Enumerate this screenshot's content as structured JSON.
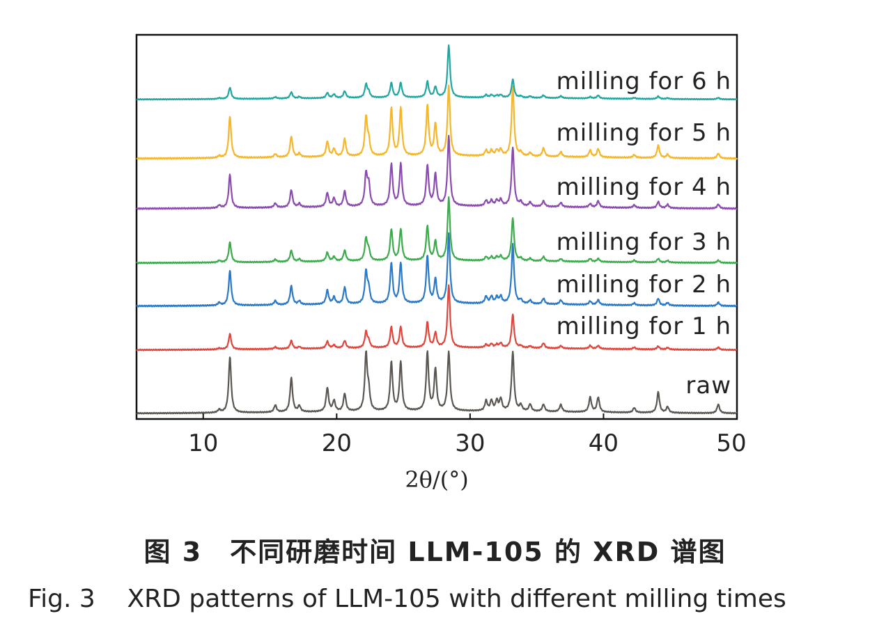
{
  "figure": {
    "caption_cn": "图 3　不同研磨时间 LLM-105 的 XRD 谱图",
    "caption_en": "Fig. 3    XRD patterns of LLM-105 with different milling times"
  },
  "chart_data": {
    "type": "line",
    "xlabel": "2θ/(°)",
    "ylabel": "",
    "xlim": [
      5,
      50
    ],
    "xticks": [
      10,
      20,
      30,
      40,
      50
    ],
    "grid": false,
    "legend": "inline labels at right end of each trace",
    "peaks_2theta": [
      11.2,
      12.0,
      15.4,
      16.6,
      17.2,
      19.3,
      19.8,
      20.6,
      22.2,
      22.4,
      24.1,
      24.8,
      26.8,
      27.4,
      28.4,
      31.2,
      31.6,
      32.0,
      32.3,
      33.2,
      33.8,
      34.5,
      35.5,
      36.8,
      39.0,
      39.6,
      42.3,
      44.1,
      44.8,
      48.6
    ],
    "series": [
      {
        "name": "raw",
        "color": "#5a5652",
        "intensities": [
          0.05,
          0.95,
          0.12,
          0.58,
          0.1,
          0.4,
          0.18,
          0.3,
          0.95,
          0.3,
          0.82,
          0.82,
          0.98,
          0.7,
          1.0,
          0.17,
          0.17,
          0.17,
          0.2,
          1.0,
          0.1,
          0.12,
          0.12,
          0.12,
          0.25,
          0.25,
          0.08,
          0.35,
          0.1,
          0.15
        ]
      },
      {
        "name": "milling for 1 h",
        "color": "#e0443a",
        "intensities": [
          0.02,
          0.25,
          0.03,
          0.13,
          0.03,
          0.11,
          0.05,
          0.12,
          0.25,
          0.1,
          0.33,
          0.33,
          0.4,
          0.23,
          1.0,
          0.05,
          0.06,
          0.05,
          0.07,
          0.53,
          0.03,
          0.03,
          0.08,
          0.04,
          0.05,
          0.05,
          0.03,
          0.05,
          0.03,
          0.04
        ]
      },
      {
        "name": "milling for 2 h",
        "color": "#2a78c8",
        "intensities": [
          0.04,
          0.5,
          0.06,
          0.27,
          0.05,
          0.2,
          0.1,
          0.24,
          0.45,
          0.2,
          0.58,
          0.58,
          0.68,
          0.34,
          1.0,
          0.1,
          0.1,
          0.09,
          0.1,
          0.85,
          0.05,
          0.05,
          0.08,
          0.06,
          0.05,
          0.07,
          0.03,
          0.1,
          0.04,
          0.05
        ]
      },
      {
        "name": "milling for 3 h",
        "color": "#3aab4a",
        "intensities": [
          0.03,
          0.32,
          0.04,
          0.18,
          0.04,
          0.14,
          0.07,
          0.17,
          0.35,
          0.16,
          0.5,
          0.5,
          0.55,
          0.3,
          1.0,
          0.06,
          0.06,
          0.06,
          0.07,
          0.68,
          0.04,
          0.04,
          0.07,
          0.04,
          0.05,
          0.05,
          0.03,
          0.06,
          0.03,
          0.04
        ]
      },
      {
        "name": "milling for 4 h",
        "color": "#8a4ab0",
        "intensities": [
          0.04,
          0.48,
          0.06,
          0.25,
          0.05,
          0.2,
          0.12,
          0.22,
          0.45,
          0.3,
          0.6,
          0.6,
          0.58,
          0.45,
          1.0,
          0.08,
          0.08,
          0.08,
          0.09,
          0.85,
          0.06,
          0.06,
          0.08,
          0.06,
          0.05,
          0.09,
          0.04,
          0.09,
          0.05,
          0.06
        ]
      },
      {
        "name": "milling for 5 h",
        "color": "#f6b62a",
        "intensities": [
          0.03,
          0.6,
          0.05,
          0.3,
          0.05,
          0.22,
          0.11,
          0.25,
          0.55,
          0.2,
          0.68,
          0.68,
          0.72,
          0.45,
          1.0,
          0.08,
          0.08,
          0.08,
          0.09,
          1.0,
          0.05,
          0.05,
          0.12,
          0.07,
          0.1,
          0.12,
          0.04,
          0.18,
          0.05,
          0.07
        ]
      },
      {
        "name": "milling for 6 h",
        "color": "#20a6a0",
        "intensities": [
          0.02,
          0.22,
          0.03,
          0.12,
          0.03,
          0.1,
          0.07,
          0.13,
          0.25,
          0.1,
          0.28,
          0.28,
          0.3,
          0.2,
          1.0,
          0.05,
          0.05,
          0.04,
          0.05,
          0.35,
          0.03,
          0.03,
          0.05,
          0.04,
          0.03,
          0.06,
          0.02,
          0.05,
          0.02,
          0.03
        ]
      }
    ]
  }
}
